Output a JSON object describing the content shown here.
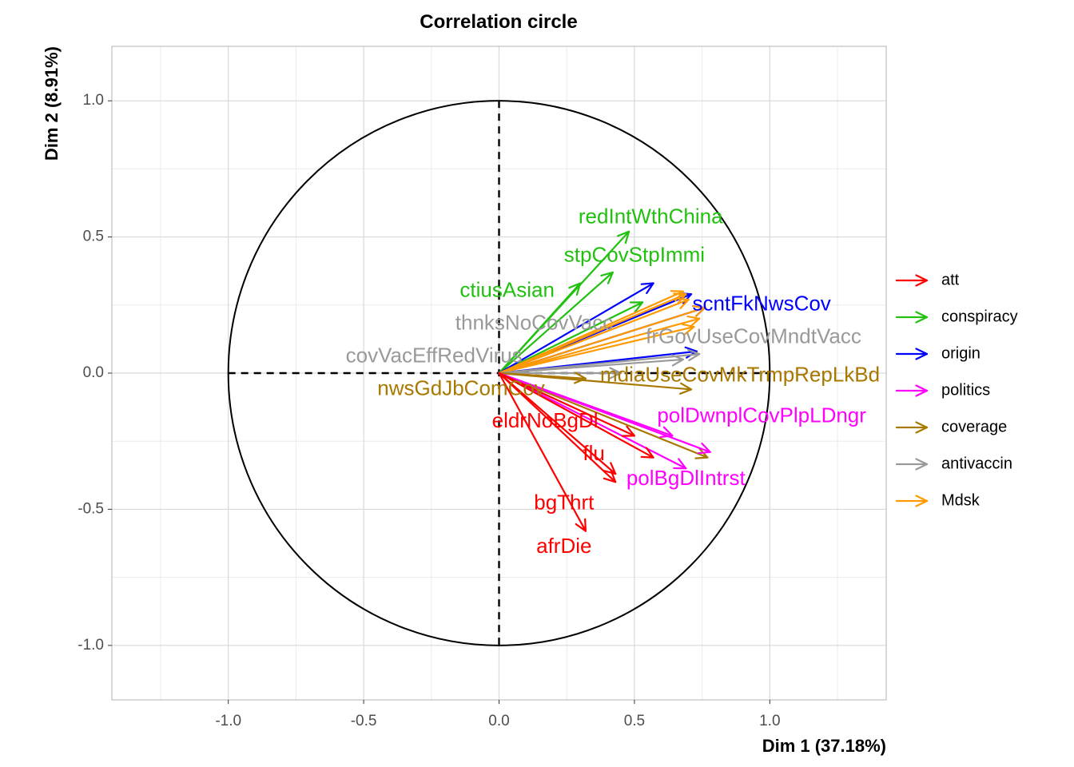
{
  "chart_data": {
    "type": "scatter",
    "title": "Correlation circle",
    "xlabel": "Dim 1 (37.18%)",
    "ylabel": "Dim 2 (8.91%)",
    "xlim": [
      -1.43,
      1.43
    ],
    "ylim": [
      -1.2,
      1.2
    ],
    "x_ticks": [
      -1.0,
      -0.5,
      0.0,
      0.5,
      1.0
    ],
    "x_tick_labels": [
      "-1.0",
      "-0.5",
      "0.0",
      "0.5",
      "1.0"
    ],
    "y_ticks": [
      -1.0,
      -0.5,
      0.0,
      0.5,
      1.0
    ],
    "y_tick_labels": [
      "-1.0",
      "-0.5",
      "0.0",
      "0.5",
      "1.0"
    ],
    "grid": true,
    "unit_circle": true,
    "legend_position": "right",
    "groups": [
      {
        "name": "att",
        "color": "#FF0000"
      },
      {
        "name": "conspiracy",
        "color": "#22C010"
      },
      {
        "name": "origin",
        "color": "#0000FF"
      },
      {
        "name": "politics",
        "color": "#FF00FF"
      },
      {
        "name": "coverage",
        "color": "#A87800"
      },
      {
        "name": "antivaccin",
        "color": "#999999"
      },
      {
        "name": "Mdsk",
        "color": "#FF9900"
      }
    ],
    "labels": [
      {
        "text": "redIntWthChina",
        "group": "conspiracy",
        "x": 0.56,
        "y": 0.57
      },
      {
        "text": "stpCovStpImmi",
        "group": "conspiracy",
        "x": 0.5,
        "y": 0.43
      },
      {
        "text": "ctiusAsian",
        "group": "conspiracy",
        "x": 0.03,
        "y": 0.3
      },
      {
        "text": "scntFkNwsCov",
        "group": "origin",
        "x": 0.97,
        "y": 0.25
      },
      {
        "text": "thnksNoCovVacc",
        "group": "antivaccin",
        "x": 0.13,
        "y": 0.18
      },
      {
        "text": "frGovUseCovMndtVacc",
        "group": "antivaccin",
        "x": 0.94,
        "y": 0.13
      },
      {
        "text": "covVacEffRedVirus",
        "group": "antivaccin",
        "x": -0.24,
        "y": 0.06
      },
      {
        "text": "mdiaUseCovMkTrmpRepLkBd",
        "group": "coverage",
        "x": 0.89,
        "y": -0.01
      },
      {
        "text": "nwsGdJbComCov",
        "group": "coverage",
        "x": -0.14,
        "y": -0.06
      },
      {
        "text": "eldrNoBgDl",
        "group": "att",
        "x": 0.17,
        "y": -0.18
      },
      {
        "text": "polDwnplCovPlpLDngr",
        "group": "politics",
        "x": 0.97,
        "y": -0.16
      },
      {
        "text": "flu",
        "group": "att",
        "x": 0.35,
        "y": -0.3
      },
      {
        "text": "polBgDlIntrst",
        "group": "politics",
        "x": 0.69,
        "y": -0.39
      },
      {
        "text": "bgThrt",
        "group": "att",
        "x": 0.24,
        "y": -0.48
      },
      {
        "text": "afrDie",
        "group": "att",
        "x": 0.24,
        "y": -0.64
      }
    ],
    "arrows": [
      {
        "group": "conspiracy",
        "x": 0.48,
        "y": 0.52
      },
      {
        "group": "conspiracy",
        "x": 0.42,
        "y": 0.37
      },
      {
        "group": "conspiracy",
        "x": 0.3,
        "y": 0.33
      },
      {
        "group": "conspiracy",
        "x": 0.53,
        "y": 0.26
      },
      {
        "group": "origin",
        "x": 0.57,
        "y": 0.33
      },
      {
        "group": "origin",
        "x": 0.71,
        "y": 0.29
      },
      {
        "group": "origin",
        "x": 0.76,
        "y": 0.24
      },
      {
        "group": "origin",
        "x": 0.73,
        "y": 0.08
      },
      {
        "group": "Mdsk",
        "x": 0.68,
        "y": 0.3
      },
      {
        "group": "Mdsk",
        "x": 0.69,
        "y": 0.29
      },
      {
        "group": "Mdsk",
        "x": 0.7,
        "y": 0.27
      },
      {
        "group": "Mdsk",
        "x": 0.76,
        "y": 0.24
      },
      {
        "group": "Mdsk",
        "x": 0.74,
        "y": 0.2
      },
      {
        "group": "Mdsk",
        "x": 0.72,
        "y": 0.17
      },
      {
        "group": "antivaccin",
        "x": 0.74,
        "y": 0.07
      },
      {
        "group": "antivaccin",
        "x": 0.68,
        "y": 0.05
      },
      {
        "group": "antivaccin",
        "x": 0.45,
        "y": 0.0
      },
      {
        "group": "coverage",
        "x": 0.71,
        "y": -0.06
      },
      {
        "group": "coverage",
        "x": 0.32,
        "y": -0.02
      },
      {
        "group": "coverage",
        "x": 0.77,
        "y": -0.31
      },
      {
        "group": "politics",
        "x": 0.78,
        "y": -0.29
      },
      {
        "group": "politics",
        "x": 0.64,
        "y": -0.23
      },
      {
        "group": "politics",
        "x": 0.69,
        "y": -0.35
      },
      {
        "group": "att",
        "x": 0.5,
        "y": -0.23
      },
      {
        "group": "att",
        "x": 0.57,
        "y": -0.31
      },
      {
        "group": "att",
        "x": 0.43,
        "y": -0.37
      },
      {
        "group": "att",
        "x": 0.43,
        "y": -0.4
      },
      {
        "group": "att",
        "x": 0.32,
        "y": -0.58
      }
    ]
  }
}
